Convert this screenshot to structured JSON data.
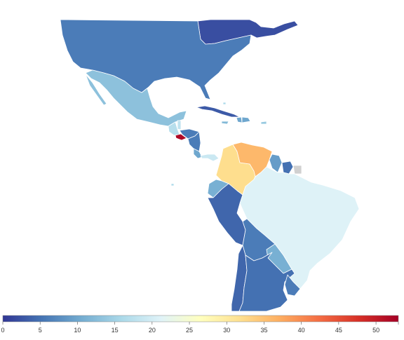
{
  "map": {
    "colorscale": [
      "#313695",
      "#4575b4",
      "#74add1",
      "#abd9e9",
      "#e0f3f8",
      "#ffffbf",
      "#fee090",
      "#fdae61",
      "#f46d43",
      "#d73027",
      "#a50026"
    ],
    "no_data_color": "#d0d0d0",
    "range": [
      0,
      53
    ],
    "countries": [
      {
        "name": "Canada (east)",
        "value": 2
      },
      {
        "name": "United States",
        "value": 6
      },
      {
        "name": "Mexico",
        "value": 13
      },
      {
        "name": "Guatemala",
        "value": 17
      },
      {
        "name": "Belize",
        "value": 18
      },
      {
        "name": "El Salvador",
        "value": 52
      },
      {
        "name": "Honduras",
        "value": 6
      },
      {
        "name": "Nicaragua",
        "value": 6
      },
      {
        "name": "Costa Rica",
        "value": 10
      },
      {
        "name": "Panama",
        "value": 19
      },
      {
        "name": "Cuba",
        "value": 3
      },
      {
        "name": "Haiti",
        "value": 10
      },
      {
        "name": "Dominican Republic",
        "value": 10
      },
      {
        "name": "Jamaica",
        "value": 12
      },
      {
        "name": "Puerto Rico",
        "value": 14
      },
      {
        "name": "Colombia",
        "value": 32
      },
      {
        "name": "Venezuela",
        "value": 36
      },
      {
        "name": "Guyana",
        "value": 9
      },
      {
        "name": "Suriname",
        "value": 5
      },
      {
        "name": "French Guiana",
        "value": null
      },
      {
        "name": "Ecuador",
        "value": 11
      },
      {
        "name": "Peru",
        "value": 4
      },
      {
        "name": "Brazil",
        "value": 21
      },
      {
        "name": "Bolivia",
        "value": 6
      },
      {
        "name": "Paraguay",
        "value": 11
      },
      {
        "name": "Chile",
        "value": 4
      },
      {
        "name": "Argentina",
        "value": 5
      },
      {
        "name": "Uruguay",
        "value": 6
      }
    ]
  },
  "legend": {
    "ticks": [
      "0",
      "5",
      "10",
      "15",
      "20",
      "25",
      "30",
      "35",
      "40",
      "45",
      "50"
    ]
  }
}
